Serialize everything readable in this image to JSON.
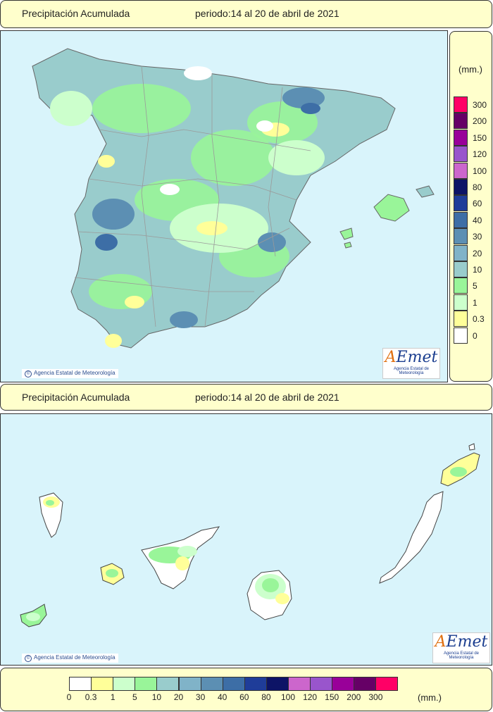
{
  "header_top": {
    "title": "Precipitación Acumulada",
    "period": "periodo:14 al 20 de abril de 2021"
  },
  "header_mid": {
    "title": "Precipitación Acumulada",
    "period": "periodo:14 al 20 de abril de 2021"
  },
  "copyright": "Agencia Estatal de Meteorología",
  "logo": {
    "text_a": "A",
    "text_rest": "Emet",
    "sub": "Agencia Estatal de Meteorología"
  },
  "legend": {
    "unit": "(mm.)",
    "levels": [
      "0",
      "0.3",
      "1",
      "5",
      "10",
      "20",
      "30",
      "40",
      "60",
      "80",
      "100",
      "120",
      "150",
      "200",
      "300"
    ],
    "colors": [
      "#ffffff",
      "#ffff99",
      "#ccffcc",
      "#99f599",
      "#99cccc",
      "#80b3c8",
      "#5c8fb3",
      "#3d6ea6",
      "#1f3d99",
      "#0d1466",
      "#cc66cc",
      "#9955cc",
      "#990099",
      "#660066",
      "#ff0066"
    ]
  },
  "colors": {
    "sea": "#d9f4fb",
    "land_base": "#99cccc",
    "border": "#999999"
  }
}
